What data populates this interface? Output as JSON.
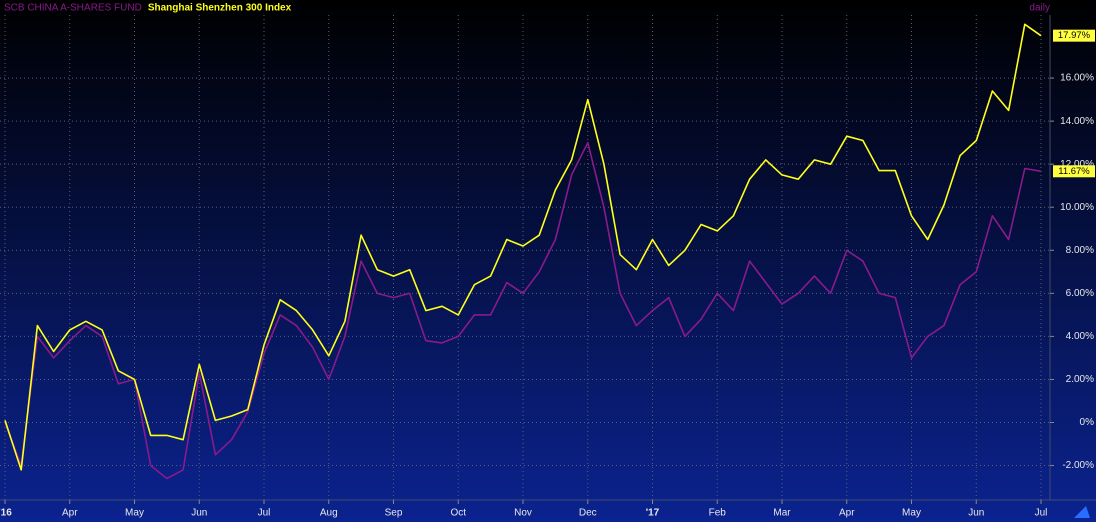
{
  "chart_data": {
    "type": "line",
    "period": "daily",
    "categories": [
      "'16",
      null,
      null,
      null,
      "Apr",
      null,
      null,
      null,
      "May",
      null,
      null,
      null,
      "Jun",
      null,
      null,
      null,
      "Jul",
      null,
      null,
      null,
      "Aug",
      null,
      null,
      null,
      "Sep",
      null,
      null,
      null,
      "Oct",
      null,
      null,
      null,
      "Nov",
      null,
      null,
      null,
      "Dec",
      null,
      null,
      null,
      "'17",
      null,
      null,
      null,
      "Feb",
      null,
      null,
      null,
      "Mar",
      null,
      null,
      null,
      "Apr",
      null,
      null,
      null,
      "May",
      null,
      null,
      null,
      "Jun",
      null,
      null,
      null,
      "Jul"
    ],
    "series": [
      {
        "name": "SCB CHINA A-SHARES FUND",
        "color": "#8a1a8c",
        "values": [
          0.0,
          -2.0,
          4.0,
          3.0,
          3.8,
          4.5,
          4.0,
          1.8,
          2.0,
          -2.0,
          -2.6,
          -2.2,
          2.3,
          -1.5,
          -0.8,
          0.5,
          3.2,
          5.0,
          4.5,
          3.5,
          2.0,
          4.0,
          7.5,
          6.0,
          5.8,
          6.0,
          3.8,
          3.7,
          4.0,
          5.0,
          5.0,
          6.5,
          6.0,
          7.0,
          8.5,
          11.5,
          13.0,
          10.0,
          6.0,
          4.5,
          5.2,
          5.8,
          4.0,
          4.8,
          6.0,
          5.2,
          7.5,
          6.5,
          5.5,
          6.0,
          6.8,
          6.0,
          8.0,
          7.5,
          6.0,
          5.8,
          3.0,
          4.0,
          4.5,
          6.4,
          7.0,
          9.6,
          8.5,
          11.8,
          11.67
        ],
        "value_labels": [
          null,
          null,
          null,
          null,
          null,
          null,
          null,
          null,
          null,
          null,
          null,
          null,
          null,
          null,
          null,
          null,
          null,
          null,
          null,
          null,
          null,
          null,
          null,
          null,
          null,
          null,
          null,
          null,
          null,
          null,
          null,
          null,
          null,
          null,
          null,
          null,
          null,
          null,
          null,
          null,
          null,
          null,
          null,
          null,
          null,
          null,
          null,
          null,
          null,
          null,
          null,
          null,
          null,
          null,
          null,
          null,
          null,
          null,
          null,
          null,
          null,
          null,
          null,
          null,
          "11.67%"
        ]
      },
      {
        "name": "Shanghai Shenzhen 300 Index",
        "color": "#ffff1a",
        "values": [
          0.1,
          -2.2,
          4.5,
          3.3,
          4.3,
          4.7,
          4.3,
          2.4,
          2.0,
          -0.6,
          -0.6,
          -0.8,
          2.7,
          0.1,
          0.3,
          0.6,
          3.6,
          5.7,
          5.2,
          4.3,
          3.1,
          4.7,
          8.7,
          7.1,
          6.8,
          7.1,
          5.2,
          5.4,
          5.0,
          6.4,
          6.8,
          8.5,
          8.2,
          8.7,
          10.8,
          12.2,
          15.0,
          12.0,
          7.8,
          7.1,
          8.5,
          7.3,
          8.0,
          9.2,
          8.9,
          9.6,
          11.3,
          12.2,
          11.5,
          11.3,
          12.2,
          12.0,
          13.3,
          13.1,
          11.7,
          11.7,
          9.6,
          8.5,
          10.1,
          12.4,
          13.1,
          15.4,
          14.5,
          18.5,
          17.97
        ],
        "value_labels": [
          null,
          null,
          null,
          null,
          null,
          null,
          null,
          null,
          null,
          null,
          null,
          null,
          null,
          null,
          null,
          null,
          null,
          null,
          null,
          null,
          null,
          null,
          null,
          null,
          null,
          null,
          null,
          null,
          null,
          null,
          null,
          null,
          null,
          null,
          null,
          null,
          null,
          null,
          null,
          null,
          null,
          null,
          null,
          null,
          null,
          null,
          null,
          null,
          null,
          null,
          null,
          null,
          null,
          null,
          null,
          null,
          null,
          null,
          null,
          null,
          null,
          null,
          null,
          null,
          "17.97%"
        ]
      }
    ],
    "ylim": [
      -3.6,
      18.93
    ],
    "yticks": [
      {
        "value": -2,
        "label": "-2.00%"
      },
      {
        "value": 0,
        "label": "0%"
      },
      {
        "value": 2,
        "label": "2.00%"
      },
      {
        "value": 4,
        "label": "4.00%"
      },
      {
        "value": 6,
        "label": "6.00%"
      },
      {
        "value": 8,
        "label": "8.00%"
      },
      {
        "value": 10,
        "label": "10.00%"
      },
      {
        "value": 12,
        "label": "12.00%"
      },
      {
        "value": 14,
        "label": "14.00%"
      },
      {
        "value": 16,
        "label": "16.00%"
      }
    ],
    "grid": true
  }
}
